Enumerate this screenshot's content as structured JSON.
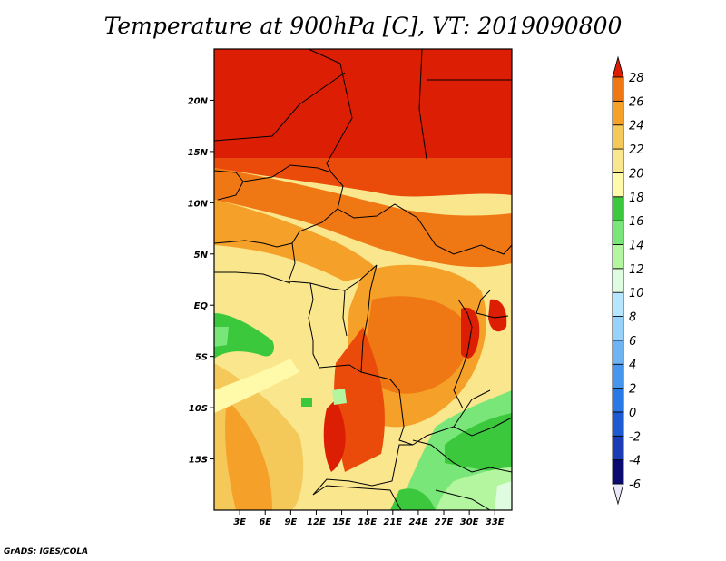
{
  "title": "Temperature at 900hPa [C], VT: 2019090800",
  "credit": "GrADS: IGES/COLA",
  "map": {
    "lon_range": [
      0,
      35
    ],
    "lat_range": [
      -20,
      25
    ],
    "lat_ticks": [
      {
        "value": 20,
        "label": "20N"
      },
      {
        "value": 15,
        "label": "15N"
      },
      {
        "value": 10,
        "label": "10N"
      },
      {
        "value": 5,
        "label": "5N"
      },
      {
        "value": 0,
        "label": "EQ"
      },
      {
        "value": -5,
        "label": "5S"
      },
      {
        "value": -10,
        "label": "10S"
      },
      {
        "value": -15,
        "label": "15S"
      }
    ],
    "lon_ticks": [
      {
        "value": 3,
        "label": "3E"
      },
      {
        "value": 6,
        "label": "6E"
      },
      {
        "value": 9,
        "label": "9E"
      },
      {
        "value": 12,
        "label": "12E"
      },
      {
        "value": 15,
        "label": "15E"
      },
      {
        "value": 18,
        "label": "18E"
      },
      {
        "value": 21,
        "label": "21E"
      },
      {
        "value": 24,
        "label": "24E"
      },
      {
        "value": 27,
        "label": "27E"
      },
      {
        "value": 30,
        "label": "30E"
      },
      {
        "value": 33,
        "label": "33E"
      }
    ]
  },
  "colorbar": {
    "levels": [
      "-6",
      "-4",
      "-2",
      "0",
      "2",
      "4",
      "6",
      "8",
      "10",
      "12",
      "14",
      "16",
      "18",
      "20",
      "22",
      "24",
      "26",
      "28"
    ],
    "colors": [
      "#e8e8f8",
      "#0a0a70",
      "#1a3cb4",
      "#1e5ad2",
      "#2878e6",
      "#4696f0",
      "#6eb4f5",
      "#96d2fa",
      "#b4e6ff",
      "#e0fce0",
      "#b4f5a0",
      "#78e678",
      "#3cc83c",
      "#fffaaa",
      "#fae68c",
      "#f5c85a",
      "#f5a028",
      "#f07814",
      "#eb4b0a",
      "#dc1e05"
    ]
  }
}
